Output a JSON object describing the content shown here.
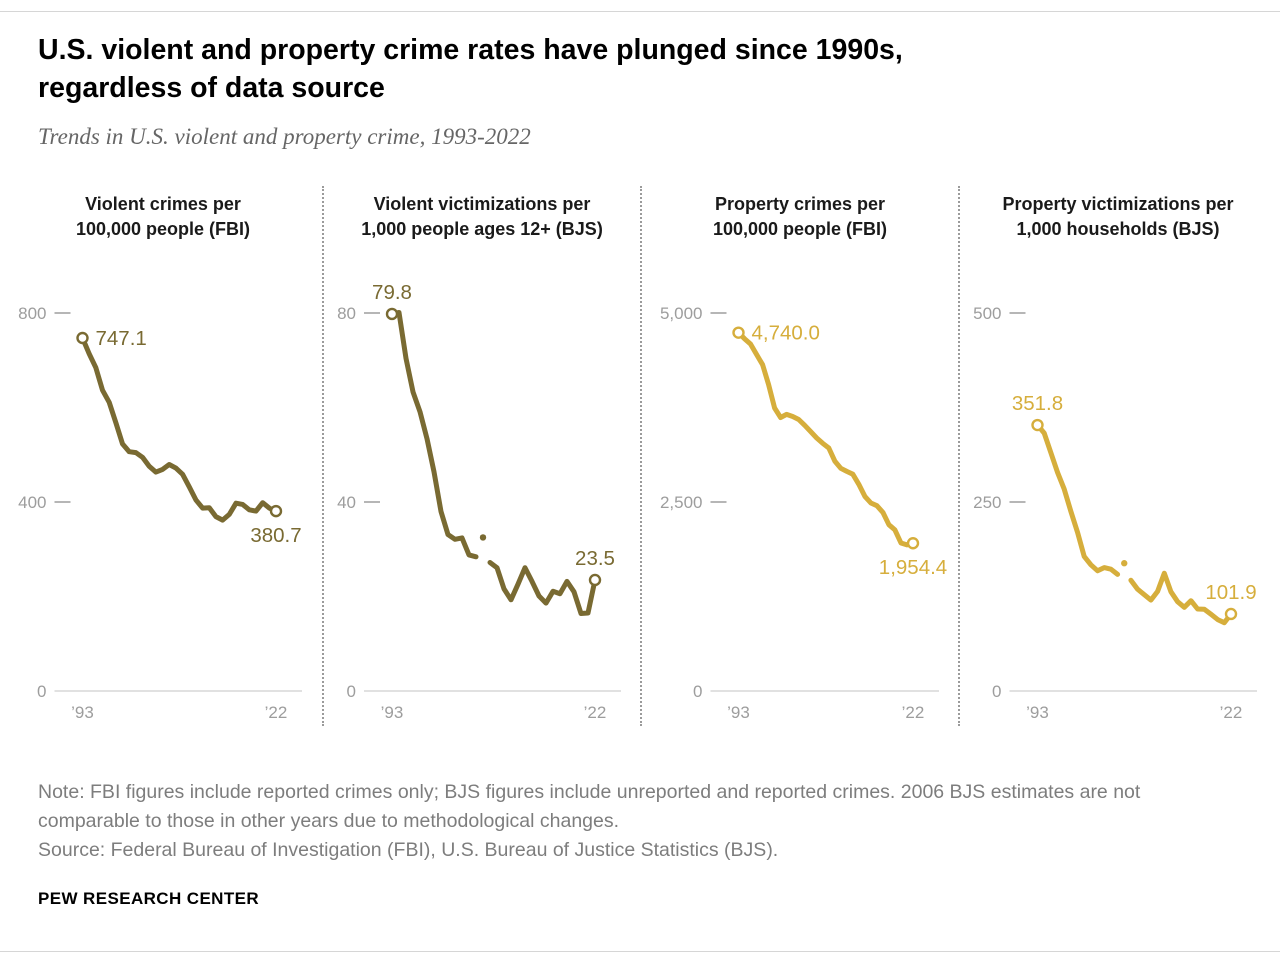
{
  "header": {
    "title_line1": "U.S. violent and property crime rates have plunged since 1990s,",
    "title_line2": "regardless of data source",
    "subtitle": "Trends in U.S. violent and property crime, 1993-2022"
  },
  "footer": {
    "note": "Note: FBI figures include reported crimes only; BJS figures include unreported and reported crimes. 2006 BJS estimates are not comparable to those in other years due to methodological changes.",
    "source": "Source: Federal Bureau of Investigation (FBI), U.S. Bureau of Justice Statistics (BJS).",
    "brand": "PEW RESEARCH CENTER"
  },
  "colors": {
    "violent": "#796a32",
    "property": "#d6ae3c",
    "axis_text": "#9d9d9d",
    "axis_line": "#cfcfcf",
    "separator": "#9b9b9b",
    "note_text": "#7d7d7d",
    "subtitle_text": "#666666",
    "title_text": "#000000",
    "background": "#ffffff"
  },
  "chart_data": [
    {
      "id": "violent-crimes-fbi",
      "type": "line",
      "grid": false,
      "legend": "none",
      "series_color": "violent",
      "title_line1": "Violent crimes per",
      "title_line2": "100,000 people (FBI)",
      "ylim": [
        0,
        800
      ],
      "yticks": [
        {
          "v": 800,
          "label": "800"
        },
        {
          "v": 400,
          "label": "400"
        },
        {
          "v": 0,
          "label": "0"
        }
      ],
      "xticks": [
        {
          "year": 1993,
          "label": "’93"
        },
        {
          "year": 2022,
          "label": "’22"
        }
      ],
      "years": [
        1993,
        1994,
        1995,
        1996,
        1997,
        1998,
        1999,
        2000,
        2001,
        2002,
        2003,
        2004,
        2005,
        2006,
        2007,
        2008,
        2009,
        2010,
        2011,
        2012,
        2013,
        2014,
        2015,
        2016,
        2017,
        2018,
        2019,
        2020,
        2021,
        2022
      ],
      "values": [
        747.1,
        713.6,
        684.5,
        636.6,
        611.0,
        567.6,
        523.0,
        506.5,
        504.5,
        494.4,
        475.8,
        463.2,
        469.0,
        479.3,
        471.8,
        458.6,
        431.9,
        404.5,
        387.1,
        387.8,
        369.1,
        361.6,
        373.7,
        397.5,
        394.9,
        383.4,
        380.8,
        398.5,
        387.0,
        380.7
      ],
      "gap_year": null,
      "point_labels": [
        {
          "year": 1993,
          "text": "747.1",
          "pos": "right"
        },
        {
          "year": 2022,
          "text": "380.7",
          "pos": "below"
        }
      ]
    },
    {
      "id": "violent-victimizations-bjs",
      "type": "line",
      "grid": false,
      "legend": "none",
      "series_color": "violent",
      "title_line1": "Violent victimizations per",
      "title_line2": "1,000 people ages 12+ (BJS)",
      "ylim": [
        0,
        80
      ],
      "yticks": [
        {
          "v": 80,
          "label": "80"
        },
        {
          "v": 40,
          "label": "40"
        },
        {
          "v": 0,
          "label": "0"
        }
      ],
      "xticks": [
        {
          "year": 1993,
          "label": "’93"
        },
        {
          "year": 2022,
          "label": "’22"
        }
      ],
      "years": [
        1993,
        1994,
        1995,
        1996,
        1997,
        1998,
        1999,
        2000,
        2001,
        2002,
        2003,
        2004,
        2005,
        2006,
        2007,
        2008,
        2009,
        2010,
        2011,
        2012,
        2013,
        2014,
        2015,
        2016,
        2017,
        2018,
        2019,
        2020,
        2021,
        2022
      ],
      "values": [
        79.8,
        80.1,
        70.4,
        63.3,
        59.1,
        53.4,
        46.4,
        38.0,
        33.1,
        32.1,
        32.4,
        28.8,
        28.4,
        32.5,
        27.2,
        26.1,
        21.6,
        19.3,
        22.6,
        26.1,
        23.2,
        20.1,
        18.6,
        21.1,
        20.6,
        23.2,
        21.0,
        16.4,
        16.5,
        23.5
      ],
      "gap_year": 2006,
      "point_labels": [
        {
          "year": 1993,
          "text": "79.8",
          "pos": "above"
        },
        {
          "year": 2022,
          "text": "23.5",
          "pos": "above"
        }
      ]
    },
    {
      "id": "property-crimes-fbi",
      "type": "line",
      "grid": false,
      "legend": "none",
      "series_color": "property",
      "title_line1": "Property crimes per",
      "title_line2": "100,000 people (FBI)",
      "ylim": [
        0,
        5000
      ],
      "yticks": [
        {
          "v": 5000,
          "label": "5,000"
        },
        {
          "v": 2500,
          "label": "2,500"
        },
        {
          "v": 0,
          "label": "0"
        }
      ],
      "xticks": [
        {
          "year": 1993,
          "label": "’93"
        },
        {
          "year": 2022,
          "label": "’22"
        }
      ],
      "years": [
        1993,
        1994,
        1995,
        1996,
        1997,
        1998,
        1999,
        2000,
        2001,
        2002,
        2003,
        2004,
        2005,
        2006,
        2007,
        2008,
        2009,
        2010,
        2011,
        2012,
        2013,
        2014,
        2015,
        2016,
        2017,
        2018,
        2019,
        2020,
        2021,
        2022
      ],
      "values": [
        4740.0,
        4660.2,
        4590.5,
        4451.0,
        4316.3,
        4052.5,
        3743.6,
        3618.3,
        3658.1,
        3630.6,
        3591.2,
        3514.1,
        3431.5,
        3346.6,
        3276.4,
        3214.6,
        3041.3,
        2945.9,
        2905.4,
        2868.0,
        2733.6,
        2574.1,
        2487.0,
        2451.6,
        2362.9,
        2199.5,
        2130.6,
        1958.2,
        1933.0,
        1954.4
      ],
      "gap_year": null,
      "point_labels": [
        {
          "year": 1993,
          "text": "4,740.0",
          "pos": "right"
        },
        {
          "year": 2022,
          "text": "1,954.4",
          "pos": "below"
        }
      ]
    },
    {
      "id": "property-victimizations-bjs",
      "type": "line",
      "grid": false,
      "legend": "none",
      "series_color": "property",
      "title_line1": "Property victimizations per",
      "title_line2": "1,000 households (BJS)",
      "ylim": [
        0,
        500
      ],
      "yticks": [
        {
          "v": 500,
          "label": "500"
        },
        {
          "v": 250,
          "label": "250"
        },
        {
          "v": 0,
          "label": "0"
        }
      ],
      "xticks": [
        {
          "year": 1993,
          "label": "’93"
        },
        {
          "year": 2022,
          "label": "’22"
        }
      ],
      "years": [
        1993,
        1994,
        1995,
        1996,
        1997,
        1998,
        1999,
        2000,
        2001,
        2002,
        2003,
        2004,
        2005,
        2006,
        2007,
        2008,
        2009,
        2010,
        2011,
        2012,
        2013,
        2014,
        2015,
        2016,
        2017,
        2018,
        2019,
        2020,
        2021,
        2022
      ],
      "values": [
        351.8,
        341.2,
        315.5,
        289.3,
        267.1,
        237.4,
        210.1,
        178.1,
        166.9,
        159.0,
        163.2,
        161.1,
        154.2,
        169.0,
        146.5,
        134.7,
        127.4,
        120.2,
        131.8,
        155.8,
        131.4,
        118.1,
        110.7,
        119.4,
        108.4,
        108.2,
        101.4,
        94.5,
        90.3,
        101.9
      ],
      "gap_year": 2006,
      "point_labels": [
        {
          "year": 1993,
          "text": "351.8",
          "pos": "above"
        },
        {
          "year": 2022,
          "text": "101.9",
          "pos": "above"
        }
      ]
    }
  ]
}
